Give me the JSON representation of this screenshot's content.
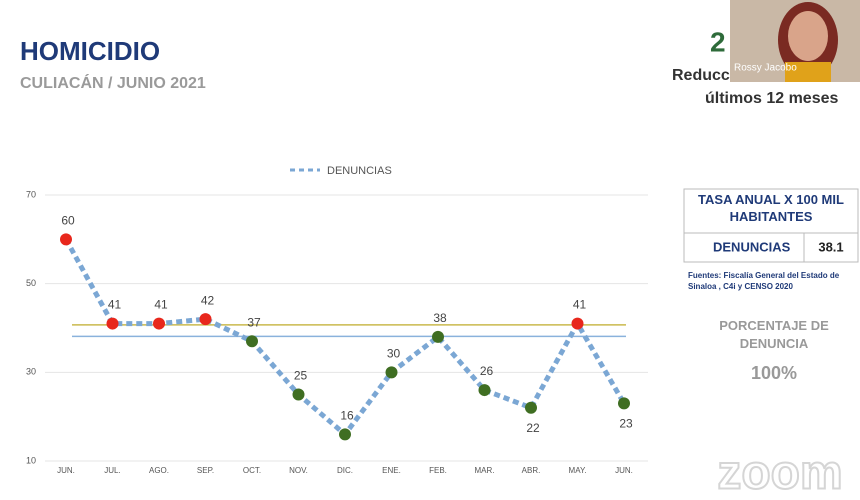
{
  "header": {
    "title": "HOMICIDIO",
    "subtitle": "CULIACÁN / JUNIO 2021"
  },
  "top_right": {
    "number": "2",
    "line1": "Reducc",
    "line2": "últimos 12 meses"
  },
  "video": {
    "name": "Rossy Jacobo"
  },
  "chart_data": {
    "type": "line",
    "categories": [
      "JUN.",
      "JUL.",
      "AGO.",
      "SEP.",
      "OCT.",
      "NOV.",
      "DIC.",
      "ENE.",
      "FEB.",
      "MAR.",
      "ABR.",
      "MAY.",
      "JUN."
    ],
    "series": [
      {
        "name": "DENUNCIAS",
        "color": "#7ba7d4",
        "values": [
          60,
          41,
          41,
          42,
          37,
          25,
          16,
          30,
          38,
          26,
          22,
          41,
          23
        ],
        "marker_colors": [
          "#e8271c",
          "#e8271c",
          "#e8271c",
          "#e8271c",
          "#3f6e22",
          "#3f6e22",
          "#3f6e22",
          "#3f6e22",
          "#3f6e22",
          "#3f6e22",
          "#3f6e22",
          "#e8271c",
          "#3f6e22"
        ]
      }
    ],
    "reference_lines": [
      {
        "value": 40.7,
        "color": "#c9b94d"
      },
      {
        "value": 38.1,
        "color": "#8ab2dc"
      }
    ],
    "ylim": [
      10,
      70
    ],
    "yticks": [
      10,
      30,
      50,
      70
    ],
    "grid": true,
    "legend": "top"
  },
  "panel": {
    "table_title": "TASA ANUAL X 100 MIL HABITANTES",
    "row_label": "DENUNCIAS",
    "row_value": 38.1,
    "sources": "Fuentes: Fiscalía General del Estado de Sinaloa , C4i y CENSO 2020",
    "percent_title": "PORCENTAJE DE DENUNCIA",
    "percent_value": "100%"
  },
  "watermark": "zoom"
}
